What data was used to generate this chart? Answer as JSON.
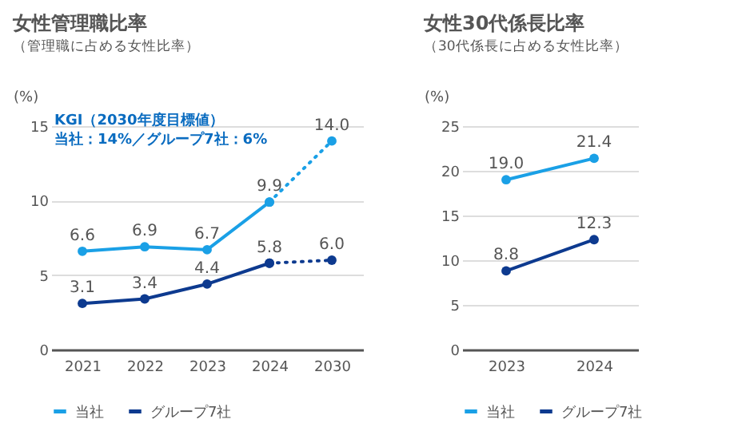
{
  "chart_data": [
    {
      "type": "line",
      "title": "女性管理職比率",
      "subtitle": "（管理職に占める女性比率）",
      "ylabel": "(%)",
      "categories": [
        "2021",
        "2022",
        "2023",
        "2024",
        "2030"
      ],
      "ylim": [
        0,
        15
      ],
      "yticks": [
        0,
        5,
        10,
        15
      ],
      "grid": "y",
      "legend": "bottom",
      "marker": "circle",
      "annotations": [
        "KGI（2030年度目標値）",
        "当社：14%／グループ7社：6%"
      ],
      "series": [
        {
          "name": "当社",
          "color": "#1aa0e6",
          "line_style": "solid",
          "values": [
            6.6,
            6.9,
            6.7,
            9.9,
            null
          ],
          "value_labels": [
            "6.6",
            "6.9",
            "6.7",
            "9.9",
            null
          ]
        },
        {
          "name": "グループ7社",
          "color": "#0d3a8f",
          "line_style": "solid",
          "values": [
            3.1,
            3.4,
            4.4,
            5.8,
            null
          ],
          "value_labels": [
            "3.1",
            "3.4",
            "4.4",
            "5.8",
            null
          ]
        },
        {
          "color": "#1aa0e6",
          "line_style": "dotted",
          "values": [
            null,
            null,
            null,
            9.9,
            14.0
          ],
          "value_labels": [
            null,
            null,
            null,
            null,
            "14.0"
          ]
        },
        {
          "color": "#0d3a8f",
          "line_style": "dotted",
          "values": [
            null,
            null,
            null,
            5.8,
            6.0
          ],
          "value_labels": [
            null,
            null,
            null,
            null,
            "6.0"
          ]
        }
      ]
    },
    {
      "type": "line",
      "title": "女性30代係長比率",
      "subtitle": "（30代係長に占める女性比率）",
      "ylabel": "(%)",
      "categories": [
        "2023",
        "2024"
      ],
      "ylim": [
        0,
        25
      ],
      "yticks": [
        0,
        5,
        10,
        15,
        20,
        25
      ],
      "grid": "y",
      "legend": "bottom",
      "marker": "circle",
      "series": [
        {
          "name": "当社",
          "color": "#1aa0e6",
          "line_style": "solid",
          "values": [
            19.0,
            21.4
          ],
          "value_labels": [
            "19.0",
            "21.4"
          ]
        },
        {
          "name": "グループ7社",
          "color": "#0d3a8f",
          "line_style": "solid",
          "values": [
            8.8,
            12.3
          ],
          "value_labels": [
            "8.8",
            "12.3"
          ]
        }
      ]
    }
  ]
}
